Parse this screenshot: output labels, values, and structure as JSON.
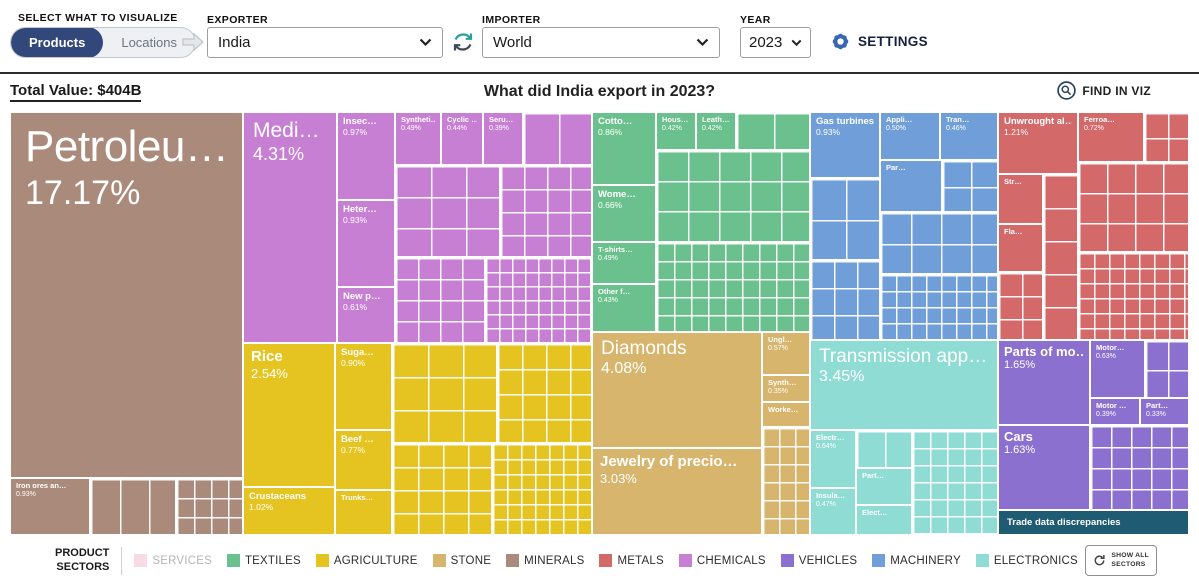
{
  "toolbar": {
    "select_label": "SELECT WHAT TO VISUALIZE",
    "products_tab": "Products",
    "locations_tab": "Locations",
    "exporter_label": "EXPORTER",
    "exporter_value": "India",
    "importer_label": "IMPORTER",
    "importer_value": "World",
    "year_label": "YEAR",
    "year_value": "2023",
    "settings_label": "SETTINGS"
  },
  "subheader": {
    "total_value": "Total Value: $404B",
    "title": "What did India export in 2023?",
    "find_in_viz": "FIND IN VIZ"
  },
  "legend": {
    "title_line1": "PRODUCT",
    "title_line2": "SECTORS",
    "show_all_line1": "SHOW ALL",
    "show_all_line2": "SECTORS",
    "items": [
      {
        "label": "SERVICES",
        "color": "#f4bed2",
        "muted": true
      },
      {
        "label": "TEXTILES",
        "color": "#6ac18d",
        "muted": false
      },
      {
        "label": "AGRICULTURE",
        "color": "#e5c320",
        "muted": false
      },
      {
        "label": "STONE",
        "color": "#d8b56c",
        "muted": false
      },
      {
        "label": "MINERALS",
        "color": "#aa8a7a",
        "muted": false
      },
      {
        "label": "METALS",
        "color": "#d4696a",
        "muted": false
      },
      {
        "label": "CHEMICALS",
        "color": "#c77fd4",
        "muted": false
      },
      {
        "label": "VEHICLES",
        "color": "#8b70d0",
        "muted": false
      },
      {
        "label": "MACHINERY",
        "color": "#6f9ed8",
        "muted": false
      },
      {
        "label": "ELECTRONICS",
        "color": "#8edcd4",
        "muted": false
      },
      {
        "label": "OTHER",
        "color": "#16384e",
        "muted": false
      }
    ]
  },
  "chart_data": {
    "type": "treemap",
    "title": "What did India export in 2023?",
    "total_value": "$404B",
    "exporter": "India",
    "importer": "World",
    "year": "2023",
    "products": [
      {
        "name": "Petroleu…",
        "share": "17.17%",
        "sector": "Minerals"
      },
      {
        "name": "Iron ores an…",
        "share": "0.93%",
        "sector": "Minerals"
      },
      {
        "name": "Medi…",
        "share": "4.31%",
        "sector": "Chemicals"
      },
      {
        "name": "Insec…",
        "share": "0.97%",
        "sector": "Chemicals"
      },
      {
        "name": "Heter…",
        "share": "0.93%",
        "sector": "Chemicals"
      },
      {
        "name": "New p…",
        "share": "0.61%",
        "sector": "Chemicals"
      },
      {
        "name": "Syntheti…",
        "share": "0.49%",
        "sector": "Chemicals"
      },
      {
        "name": "Cyclic …",
        "share": "0.44%",
        "sector": "Chemicals"
      },
      {
        "name": "Seru…",
        "share": "0.39%",
        "sector": "Chemicals"
      },
      {
        "name": "Rice",
        "share": "2.54%",
        "sector": "Agriculture"
      },
      {
        "name": "Crustaceans",
        "share": "1.02%",
        "sector": "Agriculture"
      },
      {
        "name": "Suga…",
        "share": "0.90%",
        "sector": "Agriculture"
      },
      {
        "name": "Beef …",
        "share": "0.77%",
        "sector": "Agriculture"
      },
      {
        "name": "Trunks…",
        "share": "",
        "sector": "Agriculture"
      },
      {
        "name": "Cotto…",
        "share": "0.86%",
        "sector": "Textiles"
      },
      {
        "name": "Wome…",
        "share": "0.66%",
        "sector": "Textiles"
      },
      {
        "name": "T-shirts…",
        "share": "0.49%",
        "sector": "Textiles"
      },
      {
        "name": "Other f…",
        "share": "0.43%",
        "sector": "Textiles"
      },
      {
        "name": "Hous…",
        "share": "0.42%",
        "sector": "Textiles"
      },
      {
        "name": "Leath…",
        "share": "0.42%",
        "sector": "Textiles"
      },
      {
        "name": "Diamonds",
        "share": "4.08%",
        "sector": "Stone"
      },
      {
        "name": "Jewelry of precio…",
        "share": "3.03%",
        "sector": "Stone"
      },
      {
        "name": "Ungl…",
        "share": "0.57%",
        "sector": "Stone"
      },
      {
        "name": "Synth…",
        "share": "0.35%",
        "sector": "Stone"
      },
      {
        "name": "Worke…",
        "share": "",
        "sector": "Stone"
      },
      {
        "name": "Gas turbines",
        "share": "0.93%",
        "sector": "Machinery"
      },
      {
        "name": "Appli…",
        "share": "0.50%",
        "sector": "Machinery"
      },
      {
        "name": "Tran…",
        "share": "0.46%",
        "sector": "Machinery"
      },
      {
        "name": "Par…",
        "share": "",
        "sector": "Machinery"
      },
      {
        "name": "Transmission app…",
        "share": "3.45%",
        "sector": "Electronics"
      },
      {
        "name": "Electr…",
        "share": "0.64%",
        "sector": "Electronics"
      },
      {
        "name": "Insula…",
        "share": "0.47%",
        "sector": "Electronics"
      },
      {
        "name": "Part…",
        "share": "",
        "sector": "Electronics"
      },
      {
        "name": "Elect…",
        "share": "",
        "sector": "Electronics"
      },
      {
        "name": "Unwrought al…",
        "share": "1.21%",
        "sector": "Metals"
      },
      {
        "name": "Ferroa…",
        "share": "0.72%",
        "sector": "Metals"
      },
      {
        "name": "Str…",
        "share": "",
        "sector": "Metals"
      },
      {
        "name": "Fla…",
        "share": "",
        "sector": "Metals"
      },
      {
        "name": "Parts of mo…",
        "share": "1.65%",
        "sector": "Vehicles"
      },
      {
        "name": "Motor…",
        "share": "0.63%",
        "sector": "Vehicles"
      },
      {
        "name": "Motor …",
        "share": "0.39%",
        "sector": "Vehicles"
      },
      {
        "name": "Part…",
        "share": "0.33%",
        "sector": "Vehicles"
      },
      {
        "name": "Cars",
        "share": "1.63%",
        "sector": "Vehicles"
      },
      {
        "name": "Trade data discrepancies",
        "share": "",
        "sector": "Other"
      }
    ]
  }
}
